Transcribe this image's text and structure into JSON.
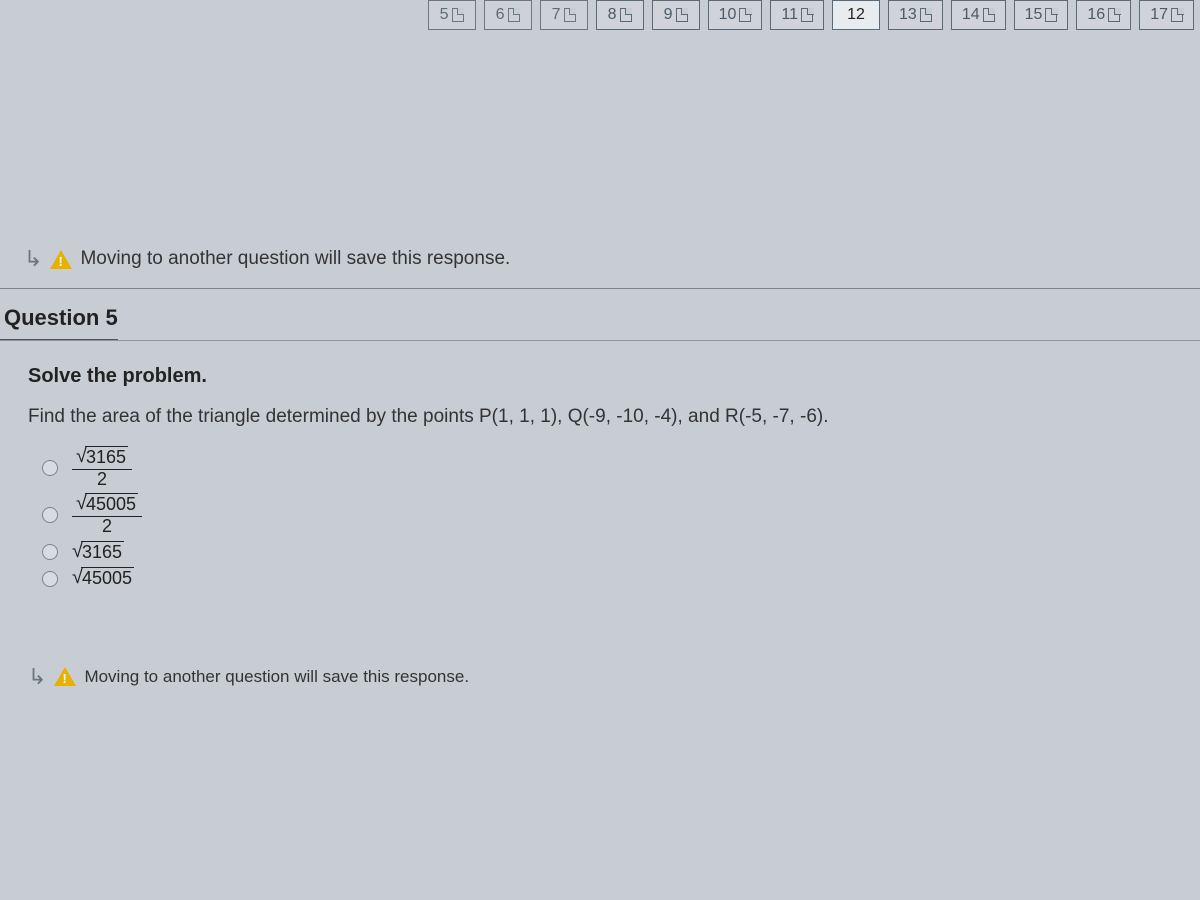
{
  "navigation": {
    "tabs": [
      {
        "label": "5",
        "has_icon": true,
        "active": false,
        "partial": true
      },
      {
        "label": "6",
        "has_icon": true,
        "active": false,
        "partial": true
      },
      {
        "label": "7",
        "has_icon": true,
        "active": false,
        "partial": true
      },
      {
        "label": "8",
        "has_icon": true,
        "active": false
      },
      {
        "label": "9",
        "has_icon": true,
        "active": false
      },
      {
        "label": "10",
        "has_icon": true,
        "active": false
      },
      {
        "label": "11",
        "has_icon": true,
        "active": false
      },
      {
        "label": "12",
        "has_icon": false,
        "active": true
      },
      {
        "label": "13",
        "has_icon": true,
        "active": false
      },
      {
        "label": "14",
        "has_icon": true,
        "active": false
      },
      {
        "label": "15",
        "has_icon": true,
        "active": false
      },
      {
        "label": "16",
        "has_icon": true,
        "active": false
      },
      {
        "label": "17",
        "has_icon": true,
        "active": false
      }
    ]
  },
  "warning": {
    "text": "Moving to another question will save this response."
  },
  "question": {
    "header": "Question 5",
    "solve_title": "Solve the problem.",
    "prompt": "Find the area of the triangle determined by the points P(1, 1, 1), Q(-9, -10, -4), and  R(-5, -7, -6).",
    "options": [
      {
        "type": "fraction",
        "numerator_radicand": "3165",
        "denominator": "2"
      },
      {
        "type": "fraction",
        "numerator_radicand": "45005",
        "denominator": "2"
      },
      {
        "type": "sqrt",
        "radicand": "3165"
      },
      {
        "type": "sqrt",
        "radicand": "45005"
      }
    ]
  },
  "colors": {
    "background": "#c8cdd3",
    "border": "#5a6a78",
    "text": "#222",
    "muted_text": "#6a7580",
    "warning_icon": "#e8b000",
    "tab_active_bg": "#e8ecee"
  }
}
